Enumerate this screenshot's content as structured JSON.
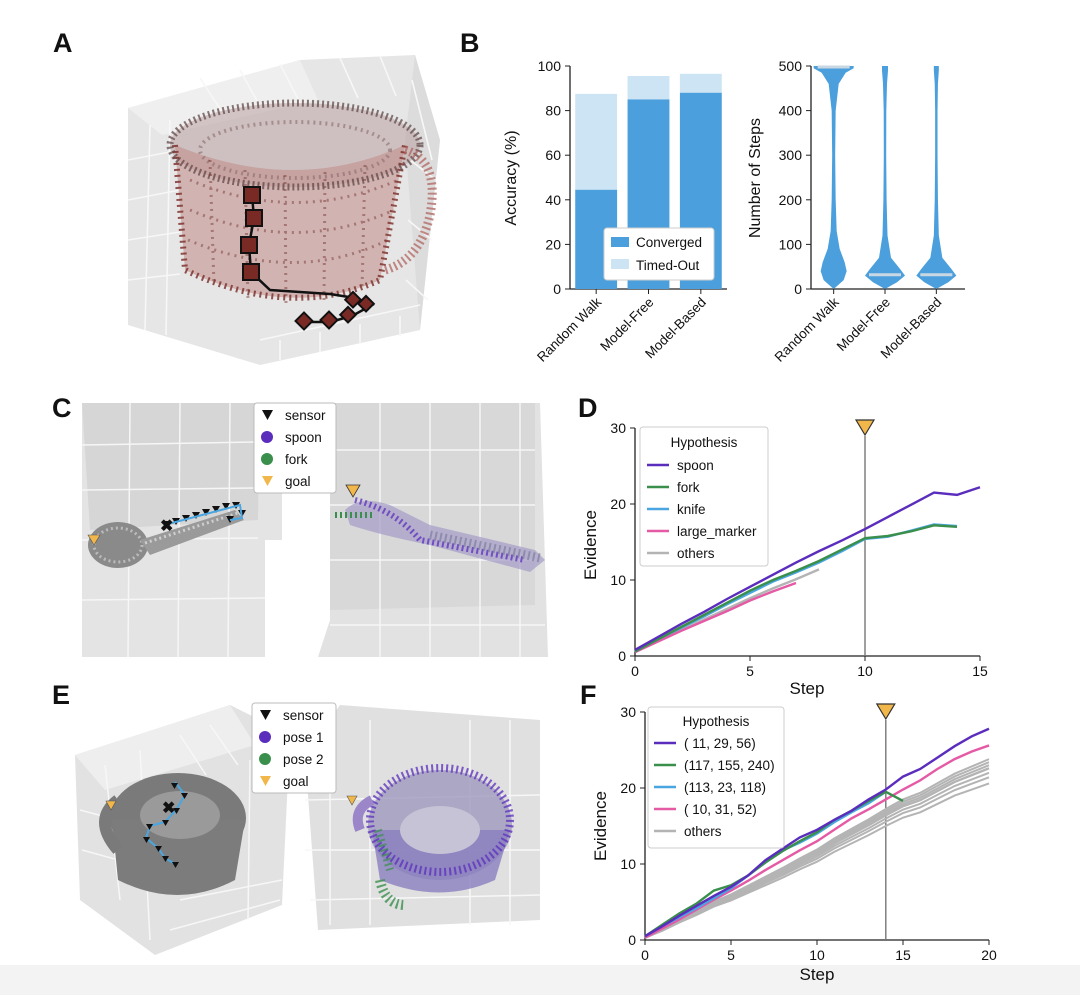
{
  "panels": {
    "a": "A",
    "b": "B",
    "c": "C",
    "d": "D",
    "e": "E",
    "f": "F"
  },
  "colors": {
    "blue": "#4a9fdc",
    "light_blue": "#cce4f4",
    "purple": "#5b2dbd",
    "green": "#3a8f4c",
    "sky": "#4aa6e0",
    "pink": "#e45aa5",
    "gray": "#b4b4b4",
    "goal": "#f2b74b",
    "mug_red": "#8a2f2a",
    "axis": "#222222",
    "vline": "#777777"
  },
  "panel_c_legend": [
    {
      "label": "sensor",
      "icon": "triangle-down-black"
    },
    {
      "label": "spoon",
      "icon": "dot-purple"
    },
    {
      "label": "fork",
      "icon": "dot-green"
    },
    {
      "label": "goal",
      "icon": "triangle-down-orange"
    }
  ],
  "panel_e_legend": [
    {
      "label": "sensor",
      "icon": "triangle-down-black"
    },
    {
      "label": "pose 1",
      "icon": "dot-purple"
    },
    {
      "label": "pose 2",
      "icon": "dot-green"
    },
    {
      "label": "goal",
      "icon": "triangle-down-orange"
    }
  ],
  "chart_data": [
    {
      "id": "b_accuracy",
      "type": "bar",
      "categories": [
        "Random Walk",
        "Model-Free",
        "Model-Based"
      ],
      "series": [
        {
          "name": "Converged",
          "values": [
            44.5,
            85,
            88
          ]
        },
        {
          "name": "Timed-Out",
          "values": [
            43,
            10.5,
            8.5
          ]
        }
      ],
      "stacked": true,
      "ylabel": "Accuracy (%)",
      "ylim": [
        0,
        100
      ],
      "yticks": [
        0,
        20,
        40,
        60,
        80,
        100
      ],
      "legend_position": "bottom-right"
    },
    {
      "id": "b_steps",
      "type": "violin",
      "categories": [
        "Random Walk",
        "Model-Free",
        "Model-Based"
      ],
      "medians": [
        500,
        32,
        32
      ],
      "ylabel": "Number of Steps",
      "ylim": [
        0,
        500
      ],
      "yticks": [
        0,
        100,
        200,
        300,
        400,
        500
      ]
    },
    {
      "id": "d_evidence",
      "type": "line",
      "xlabel": "Step",
      "ylabel": "Evidence",
      "xlim": [
        0,
        15
      ],
      "ylim": [
        0,
        30
      ],
      "xticks": [
        0,
        5,
        10,
        15
      ],
      "yticks": [
        0,
        10,
        20,
        30
      ],
      "legend_title": "Hypothesis",
      "goal_step": 10,
      "series": [
        {
          "name": "spoon",
          "x": [
            0,
            1,
            2,
            3,
            4,
            5,
            6,
            7,
            8,
            9,
            10,
            11,
            12,
            13,
            14,
            15
          ],
          "y": [
            0.8,
            2.5,
            4.2,
            5.8,
            7.5,
            9.1,
            10.7,
            12.3,
            13.8,
            15.2,
            16.7,
            18.3,
            19.9,
            21.5,
            21.2,
            22.2
          ]
        },
        {
          "name": "fork",
          "x": [
            0,
            1,
            2,
            3,
            4,
            5,
            6,
            7,
            8,
            9,
            10,
            11,
            12,
            13,
            14
          ],
          "y": [
            0.6,
            2.2,
            3.8,
            5.4,
            7.0,
            8.6,
            10.0,
            11.2,
            12.5,
            14.0,
            15.5,
            15.8,
            16.4,
            17.2,
            17.0
          ]
        },
        {
          "name": "knife",
          "x": [
            0,
            1,
            2,
            3,
            4,
            5,
            6,
            7,
            8,
            9,
            10,
            11,
            12,
            13,
            14
          ],
          "y": [
            0.6,
            2.2,
            3.7,
            5.2,
            6.8,
            8.3,
            9.8,
            11.0,
            12.3,
            13.8,
            15.4,
            15.7,
            16.5,
            17.3,
            17.1
          ]
        },
        {
          "name": "large_marker",
          "x": [
            0,
            1,
            2,
            3,
            4,
            5,
            6,
            7
          ],
          "y": [
            0.5,
            1.9,
            3.3,
            4.6,
            5.9,
            7.3,
            8.5,
            9.6
          ]
        },
        {
          "name": "others",
          "x": [
            0,
            1,
            2,
            3,
            4,
            5,
            6,
            7,
            8
          ],
          "y": [
            0.5,
            2.0,
            3.4,
            4.8,
            6.2,
            7.6,
            8.9,
            10.1,
            11.4
          ]
        }
      ]
    },
    {
      "id": "f_evidence",
      "type": "line",
      "xlabel": "Step",
      "ylabel": "Evidence",
      "xlim": [
        0,
        20
      ],
      "ylim": [
        0,
        30
      ],
      "xticks": [
        0,
        5,
        10,
        15,
        20
      ],
      "yticks": [
        0,
        10,
        20,
        30
      ],
      "legend_title": "Hypothesis",
      "goal_step": 14,
      "series": [
        {
          "name": "( 11,  29,  56)",
          "x": [
            0,
            1,
            2,
            3,
            4,
            5,
            6,
            7,
            8,
            9,
            10,
            11,
            12,
            13,
            14,
            15,
            16,
            17,
            18,
            19,
            20
          ],
          "y": [
            0.5,
            1.8,
            3.2,
            4.5,
            5.8,
            7.0,
            8.5,
            10.5,
            12.0,
            13.5,
            14.5,
            15.8,
            17.0,
            18.5,
            19.8,
            21.5,
            22.5,
            24.0,
            25.5,
            26.8,
            27.8
          ]
        },
        {
          "name": "(117, 155, 240)",
          "x": [
            0,
            1,
            2,
            3,
            4,
            5,
            6,
            7,
            8,
            9,
            10,
            11,
            12,
            13,
            14,
            15
          ],
          "y": [
            0.5,
            2.0,
            3.5,
            4.8,
            6.5,
            7.2,
            8.5,
            10.2,
            11.7,
            13.0,
            14.2,
            15.8,
            17.0,
            18.3,
            19.5,
            18.3
          ]
        },
        {
          "name": "(113,  23, 118)",
          "x": [
            0,
            1,
            2,
            3,
            4,
            5,
            6,
            7,
            8,
            9,
            10,
            11,
            12,
            13,
            14
          ],
          "y": [
            0.5,
            1.8,
            3.0,
            4.2,
            5.5,
            6.8,
            8.5,
            10.2,
            11.8,
            12.8,
            14.0,
            15.5,
            16.8,
            18.0,
            19.5
          ]
        },
        {
          "name": "( 10,  31,  52)",
          "x": [
            0,
            1,
            2,
            3,
            4,
            5,
            6,
            7,
            8,
            9,
            10,
            11,
            12,
            13,
            14,
            15,
            16,
            17,
            18,
            19,
            20
          ],
          "y": [
            0.3,
            1.5,
            2.7,
            4.0,
            5.3,
            6.5,
            7.8,
            9.2,
            10.5,
            11.8,
            13.0,
            14.5,
            16.0,
            17.2,
            18.5,
            19.8,
            21.0,
            22.5,
            23.8,
            24.8,
            25.6
          ]
        },
        {
          "name": "others",
          "x": [
            0,
            1,
            2,
            3,
            4,
            5,
            6,
            7,
            8,
            9,
            10,
            11,
            12,
            13,
            14,
            15,
            16,
            17,
            18,
            19,
            20
          ],
          "y": [
            0.3,
            1.3,
            2.5,
            3.6,
            4.8,
            5.7,
            6.8,
            7.9,
            9.0,
            10.2,
            11.3,
            12.7,
            13.9,
            15.1,
            16.4,
            17.6,
            18.4,
            19.6,
            20.8,
            21.7,
            22.6
          ]
        }
      ]
    }
  ]
}
